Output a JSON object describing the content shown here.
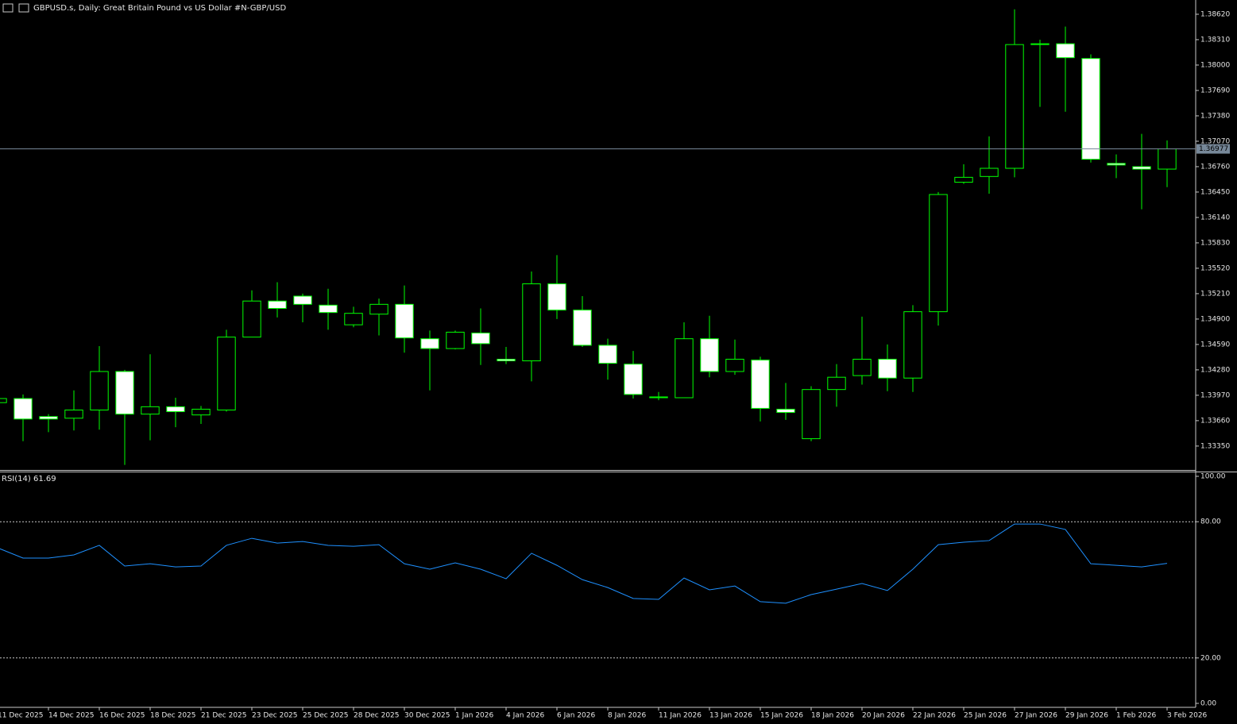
{
  "chart_data": [
    {
      "type": "candlestick",
      "title": "GBPUSD.s, Daily:  Great Britain Pound vs US Dollar #N-GBP/USD",
      "categories": [
        "11 Dec 2025",
        null,
        "14 Dec 2025",
        null,
        "16 Dec 2025",
        null,
        "18 Dec 2025",
        null,
        "21 Dec 2025",
        null,
        "23 Dec 2025",
        null,
        "25 Dec 2025",
        null,
        "28 Dec 2025",
        null,
        "30 Dec 2025",
        null,
        "1 Jan 2026",
        null,
        "4 Jan 2026",
        null,
        "6 Jan 2026",
        null,
        "8 Jan 2026",
        null,
        "11 Jan 2026",
        null,
        "13 Jan 2026",
        null,
        "15 Jan 2026",
        null,
        "18 Jan 2026",
        null,
        "20 Jan 2026",
        null,
        "22 Jan 2026",
        null,
        "25 Jan 2026",
        null,
        "27 Jan 2026",
        null,
        "29 Jan 2026",
        null,
        "1 Feb 2026",
        null,
        "3 Feb 2026"
      ],
      "open": [
        1.3388,
        1.3393,
        1.3371,
        1.3369,
        1.3379,
        1.3426,
        1.3374,
        1.3383,
        1.3373,
        1.3379,
        1.3468,
        1.3512,
        1.3518,
        1.3507,
        1.3483,
        1.3496,
        1.3508,
        1.3466,
        1.3454,
        1.3473,
        1.3441,
        1.3439,
        1.3533,
        1.3501,
        1.3458,
        1.3435,
        1.3394,
        1.3394,
        1.3466,
        1.3426,
        1.344,
        1.338,
        1.3344,
        1.3404,
        1.3421,
        1.3441,
        1.3418,
        1.3499,
        1.3657,
        1.3664,
        1.3674,
        1.3825,
        1.3826,
        1.3808,
        1.368,
        1.3676,
        1.3673
      ],
      "high": [
        1.3395,
        1.3398,
        1.3374,
        1.3403,
        1.3457,
        1.3428,
        1.3447,
        1.3394,
        1.3384,
        1.3477,
        1.3525,
        1.3535,
        1.3521,
        1.3527,
        1.3505,
        1.3515,
        1.3531,
        1.3476,
        1.3476,
        1.3503,
        1.3456,
        1.3548,
        1.3568,
        1.3518,
        1.3466,
        1.3451,
        1.3401,
        1.3486,
        1.3494,
        1.3465,
        1.3444,
        1.3412,
        1.3408,
        1.3435,
        1.3493,
        1.3459,
        1.3507,
        1.3645,
        1.3679,
        1.3713,
        1.3868,
        1.3831,
        1.3847,
        1.3813,
        1.3691,
        1.3716,
        1.3708
      ],
      "low": [
        1.3386,
        1.3341,
        1.3352,
        1.3354,
        1.3355,
        1.3312,
        1.3342,
        1.3358,
        1.3362,
        1.3377,
        1.3468,
        1.3492,
        1.3486,
        1.3477,
        1.348,
        1.347,
        1.3449,
        1.3403,
        1.3453,
        1.3434,
        1.3435,
        1.3414,
        1.349,
        1.3456,
        1.3416,
        1.3393,
        1.3391,
        1.3394,
        1.3419,
        1.3422,
        1.3365,
        1.3367,
        1.3341,
        1.3383,
        1.341,
        1.3402,
        1.3401,
        1.3482,
        1.3655,
        1.3643,
        1.3663,
        1.3749,
        1.3743,
        1.3681,
        1.3662,
        1.3624,
        1.3651
      ],
      "close": [
        1.3393,
        1.3368,
        1.3368,
        1.3379,
        1.3426,
        1.3374,
        1.3383,
        1.3377,
        1.338,
        1.3468,
        1.3512,
        1.3503,
        1.3508,
        1.3498,
        1.3497,
        1.3508,
        1.3467,
        1.3454,
        1.3474,
        1.346,
        1.3439,
        1.3533,
        1.3501,
        1.3458,
        1.3436,
        1.3398,
        1.3395,
        1.3466,
        1.3426,
        1.3441,
        1.3381,
        1.3376,
        1.3404,
        1.3419,
        1.3441,
        1.3418,
        1.3499,
        1.3642,
        1.3663,
        1.3674,
        1.3825,
        1.3826,
        1.3809,
        1.3685,
        1.3678,
        1.3673,
        1.36977
      ],
      "up_color": "#000000",
      "down_color": "#ffffff",
      "outline_color": "#00ff00",
      "ylim": [
        1.33068,
        1.38794
      ],
      "yticks": [
        {
          "value": 1.3862,
          "label": "1.38620"
        },
        {
          "value": 1.3831,
          "label": "1.38310"
        },
        {
          "value": 1.38,
          "label": "1.38000"
        },
        {
          "value": 1.3769,
          "label": "1.37690"
        },
        {
          "value": 1.3738,
          "label": "1.37380"
        },
        {
          "value": 1.3707,
          "label": "1.37070"
        },
        {
          "value": 1.3676,
          "label": "1.36760"
        },
        {
          "value": 1.3645,
          "label": "1.36450"
        },
        {
          "value": 1.3614,
          "label": "1.36140"
        },
        {
          "value": 1.3583,
          "label": "1.35830"
        },
        {
          "value": 1.3552,
          "label": "1.35520"
        },
        {
          "value": 1.3521,
          "label": "1.35210"
        },
        {
          "value": 1.349,
          "label": "1.34900"
        },
        {
          "value": 1.3459,
          "label": "1.34590"
        },
        {
          "value": 1.3428,
          "label": "1.34280"
        },
        {
          "value": 1.3397,
          "label": "1.33970"
        },
        {
          "value": 1.3366,
          "label": "1.33660"
        },
        {
          "value": 1.3335,
          "label": "1.33350"
        }
      ],
      "price_line": {
        "value": 1.36977,
        "label": "1.36977",
        "color": "#778899"
      }
    },
    {
      "type": "line",
      "title": "RSI(14) 61.69",
      "values": [
        68.5,
        64.0,
        64.0,
        65.4,
        69.6,
        60.5,
        61.5,
        60.1,
        60.5,
        69.6,
        72.7,
        70.6,
        71.3,
        69.6,
        69.2,
        69.9,
        61.5,
        59.1,
        61.9,
        59.1,
        54.9,
        66.1,
        60.8,
        54.5,
        51.0,
        46.2,
        45.8,
        55.2,
        50.0,
        51.7,
        44.8,
        44.1,
        47.9,
        50.3,
        52.8,
        49.7,
        59.1,
        69.9,
        71.0,
        71.7,
        79.0,
        79.0,
        76.6,
        61.5,
        60.8,
        60.1,
        61.69
      ],
      "color": "#1e90ff",
      "ylim": [
        -1.75,
        101.75
      ],
      "yticks": [
        {
          "value": 100,
          "label": "100.00"
        },
        {
          "value": 80,
          "label": "80.00"
        },
        {
          "value": 20,
          "label": "20.00"
        },
        {
          "value": 0,
          "label": "0.00"
        }
      ]
    }
  ]
}
